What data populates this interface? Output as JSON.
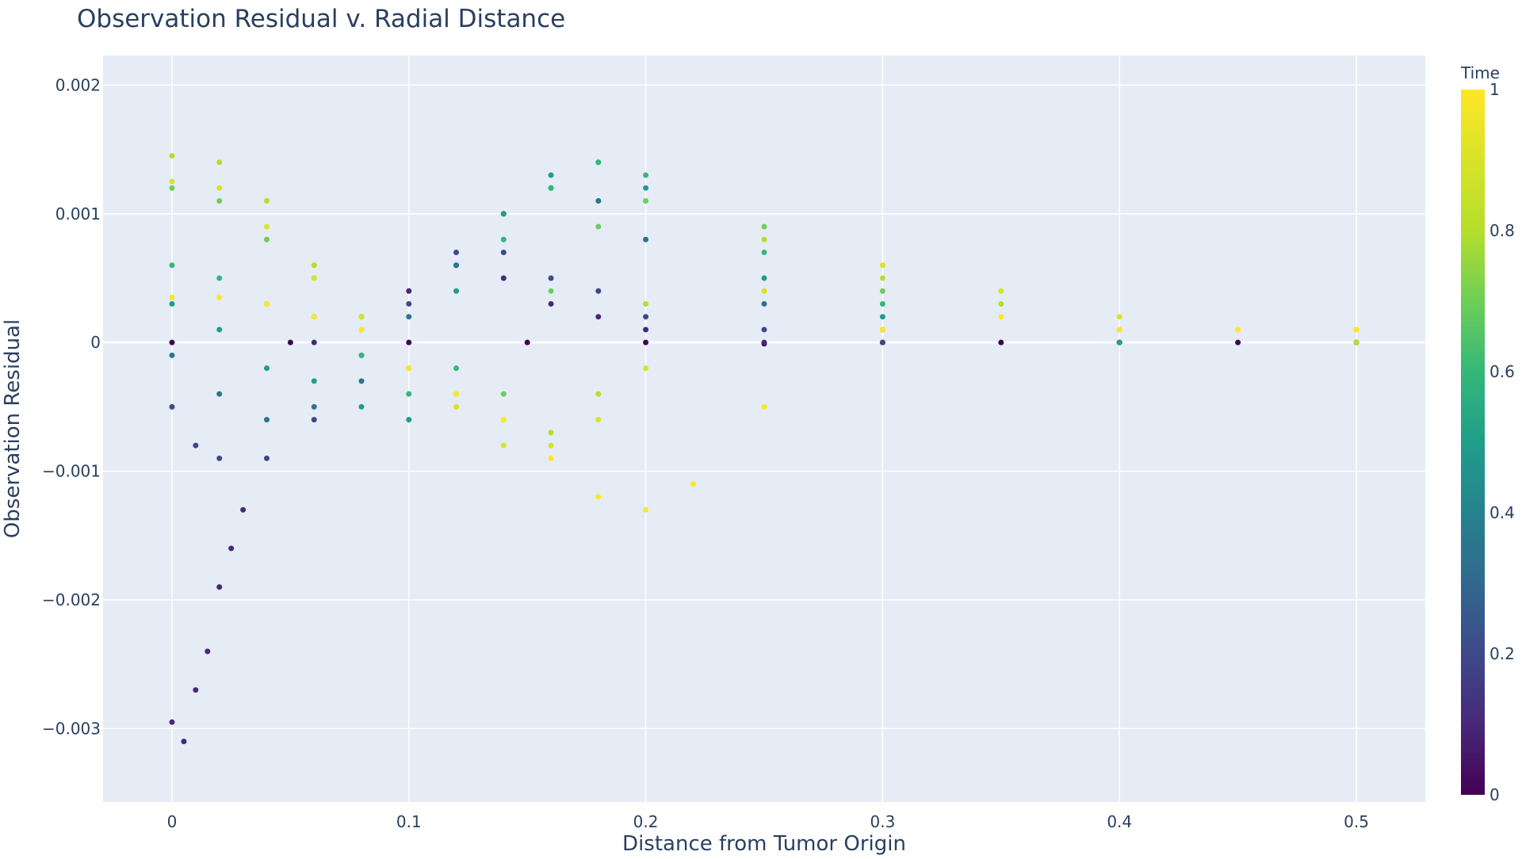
{
  "chart_data": {
    "type": "scatter",
    "title": "Observation Residual v. Radial Distance",
    "xlabel": "Distance from Tumor Origin",
    "ylabel": "Observation Residual",
    "xlim": [
      -0.0291,
      0.5291
    ],
    "ylim": [
      -0.00357,
      0.00223
    ],
    "grid": true,
    "x_ticks": [
      0,
      0.1,
      0.2,
      0.3,
      0.4,
      0.5
    ],
    "x_tick_labels": [
      "0",
      "0.1",
      "0.2",
      "0.3",
      "0.4",
      "0.5"
    ],
    "y_ticks": [
      -0.003,
      -0.002,
      -0.001,
      0,
      0.001,
      0.002
    ],
    "y_tick_labels": [
      "−0.003",
      "−0.002",
      "−0.001",
      "0",
      "0.001",
      "0.002"
    ],
    "colorbar": {
      "title": "Time",
      "range": [
        0,
        1
      ],
      "ticks": [
        0,
        0.2,
        0.4,
        0.6,
        0.8,
        1
      ],
      "tick_labels": [
        "0",
        "0.2",
        "0.4",
        "0.6",
        "0.8",
        "1"
      ],
      "colorscale": "Viridis"
    },
    "series": [
      {
        "color_value": 0.0,
        "points": [
          [
            0.0,
            0.0
          ],
          [
            0.05,
            0.0
          ],
          [
            0.1,
            0.0
          ],
          [
            0.15,
            0.0
          ],
          [
            0.2,
            0.0
          ],
          [
            0.25,
            -1e-05
          ],
          [
            0.3,
            0.0
          ],
          [
            0.35,
            0.0
          ],
          [
            0.4,
            0.0
          ],
          [
            0.45,
            0.0
          ],
          [
            0.5,
            0.0
          ]
        ]
      },
      {
        "color_value": 0.1,
        "points": [
          [
            0.0,
            -0.00295
          ],
          [
            0.005,
            -0.0031
          ],
          [
            0.01,
            -0.0027
          ],
          [
            0.015,
            -0.0024
          ],
          [
            0.02,
            -0.0019
          ],
          [
            0.025,
            -0.0016
          ],
          [
            0.03,
            -0.0013
          ],
          [
            0.06,
            0.0
          ],
          [
            0.08,
            0.0002
          ],
          [
            0.1,
            0.0004
          ],
          [
            0.12,
            0.0006
          ],
          [
            0.14,
            0.0005
          ],
          [
            0.16,
            0.0003
          ],
          [
            0.18,
            0.0002
          ],
          [
            0.2,
            0.0001
          ],
          [
            0.25,
            0.0
          ],
          [
            0.3,
            0.0
          ],
          [
            0.4,
            0.0
          ],
          [
            0.5,
            0.0
          ]
        ]
      },
      {
        "color_value": 0.2,
        "points": [
          [
            0.0,
            -0.0005
          ],
          [
            0.01,
            -0.0008
          ],
          [
            0.02,
            -0.0009
          ],
          [
            0.04,
            -0.0009
          ],
          [
            0.06,
            -0.0006
          ],
          [
            0.08,
            -0.0001
          ],
          [
            0.1,
            0.0003
          ],
          [
            0.12,
            0.0007
          ],
          [
            0.14,
            0.0007
          ],
          [
            0.16,
            0.0005
          ],
          [
            0.18,
            0.0004
          ],
          [
            0.2,
            0.0002
          ],
          [
            0.25,
            0.0001
          ],
          [
            0.3,
            0.0
          ],
          [
            0.4,
            0.0
          ],
          [
            0.5,
            0.0
          ]
        ]
      },
      {
        "color_value": 0.35,
        "points": [
          [
            0.0,
            -0.0001
          ],
          [
            0.02,
            -0.0004
          ],
          [
            0.04,
            -0.0006
          ],
          [
            0.06,
            -0.0005
          ],
          [
            0.08,
            -0.0003
          ],
          [
            0.1,
            0.0002
          ],
          [
            0.12,
            0.0006
          ],
          [
            0.14,
            0.001
          ],
          [
            0.16,
            0.0012
          ],
          [
            0.18,
            0.0011
          ],
          [
            0.2,
            0.0008
          ],
          [
            0.25,
            0.0003
          ],
          [
            0.3,
            0.0001
          ],
          [
            0.4,
            0.0
          ],
          [
            0.5,
            0.0
          ]
        ]
      },
      {
        "color_value": 0.5,
        "points": [
          [
            0.0,
            0.0003
          ],
          [
            0.02,
            0.0001
          ],
          [
            0.04,
            -0.0002
          ],
          [
            0.06,
            -0.0003
          ],
          [
            0.08,
            -0.0005
          ],
          [
            0.1,
            -0.0006
          ],
          [
            0.12,
            0.0004
          ],
          [
            0.14,
            0.001
          ],
          [
            0.16,
            0.0013
          ],
          [
            0.18,
            0.0014
          ],
          [
            0.2,
            0.0012
          ],
          [
            0.25,
            0.0005
          ],
          [
            0.3,
            0.0002
          ],
          [
            0.4,
            0.0
          ],
          [
            0.5,
            0.0
          ]
        ]
      },
      {
        "color_value": 0.6,
        "points": [
          [
            0.0,
            0.0006
          ],
          [
            0.02,
            0.0005
          ],
          [
            0.04,
            0.0003
          ],
          [
            0.06,
            0.0002
          ],
          [
            0.08,
            -0.0001
          ],
          [
            0.1,
            -0.0004
          ],
          [
            0.12,
            -0.0002
          ],
          [
            0.14,
            0.0008
          ],
          [
            0.16,
            0.0012
          ],
          [
            0.18,
            0.0014
          ],
          [
            0.2,
            0.0013
          ],
          [
            0.25,
            0.0007
          ],
          [
            0.3,
            0.0003
          ],
          [
            0.4,
            0.0001
          ],
          [
            0.5,
            0.0
          ]
        ]
      },
      {
        "color_value": 0.7,
        "points": [
          [
            0.0,
            0.0012
          ],
          [
            0.02,
            0.0011
          ],
          [
            0.04,
            0.0008
          ],
          [
            0.06,
            0.0005
          ],
          [
            0.08,
            0.0001
          ],
          [
            0.1,
            -0.0002
          ],
          [
            0.12,
            -0.0004
          ],
          [
            0.14,
            -0.0004
          ],
          [
            0.16,
            0.0004
          ],
          [
            0.18,
            0.0009
          ],
          [
            0.2,
            0.0011
          ],
          [
            0.25,
            0.0009
          ],
          [
            0.3,
            0.0004
          ],
          [
            0.4,
            0.0001
          ],
          [
            0.5,
            0.0
          ]
        ]
      },
      {
        "color_value": 0.8,
        "points": [
          [
            0.0,
            0.00145
          ],
          [
            0.02,
            0.0014
          ],
          [
            0.04,
            0.0011
          ],
          [
            0.06,
            0.0006
          ],
          [
            0.08,
            0.0002
          ],
          [
            0.1,
            -0.0002
          ],
          [
            0.12,
            -0.0005
          ],
          [
            0.14,
            -0.0006
          ],
          [
            0.16,
            -0.0007
          ],
          [
            0.18,
            -0.0004
          ],
          [
            0.2,
            0.0003
          ],
          [
            0.25,
            0.0008
          ],
          [
            0.3,
            0.0005
          ],
          [
            0.35,
            0.0003
          ],
          [
            0.4,
            0.0001
          ],
          [
            0.5,
            0.0
          ]
        ]
      },
      {
        "color_value": 0.9,
        "points": [
          [
            0.0,
            0.00125
          ],
          [
            0.02,
            0.0012
          ],
          [
            0.04,
            0.0009
          ],
          [
            0.06,
            0.0005
          ],
          [
            0.08,
            0.0002
          ],
          [
            0.1,
            -0.0002
          ],
          [
            0.12,
            -0.0005
          ],
          [
            0.14,
            -0.0008
          ],
          [
            0.16,
            -0.0008
          ],
          [
            0.18,
            -0.0006
          ],
          [
            0.2,
            -0.0002
          ],
          [
            0.25,
            0.0004
          ],
          [
            0.3,
            0.0006
          ],
          [
            0.35,
            0.0004
          ],
          [
            0.4,
            0.0002
          ],
          [
            0.5,
            0.0001
          ]
        ]
      },
      {
        "color_value": 1.0,
        "points": [
          [
            0.0,
            0.00035
          ],
          [
            0.02,
            0.00035
          ],
          [
            0.04,
            0.0003
          ],
          [
            0.06,
            0.0002
          ],
          [
            0.08,
            0.0001
          ],
          [
            0.1,
            -0.0002
          ],
          [
            0.12,
            -0.0004
          ],
          [
            0.14,
            -0.0006
          ],
          [
            0.16,
            -0.0009
          ],
          [
            0.18,
            -0.0012
          ],
          [
            0.2,
            -0.0013
          ],
          [
            0.22,
            -0.0011
          ],
          [
            0.25,
            -0.0005
          ],
          [
            0.3,
            0.0001
          ],
          [
            0.35,
            0.0002
          ],
          [
            0.4,
            0.0001
          ],
          [
            0.45,
            0.0001
          ],
          [
            0.5,
            0.0001
          ]
        ]
      }
    ]
  }
}
